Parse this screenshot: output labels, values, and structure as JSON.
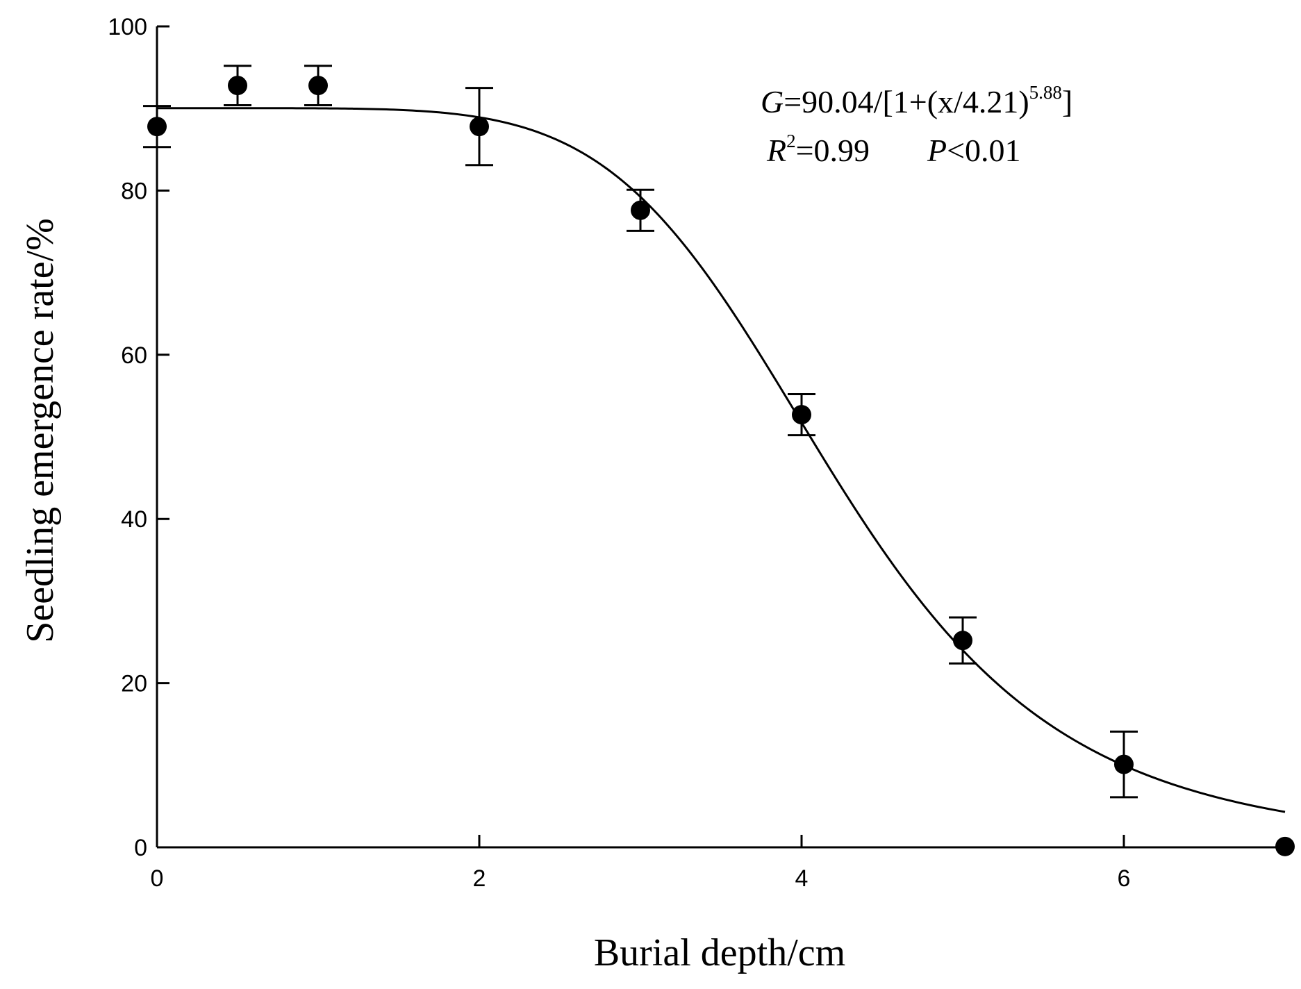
{
  "chart_data": {
    "type": "scatter",
    "title": "",
    "xlabel": "Burial depth/cm",
    "ylabel": "Seedling emergence rate/%",
    "xlim": [
      0,
      7
    ],
    "ylim": [
      0,
      100
    ],
    "x_ticks": [
      0,
      2,
      4,
      6
    ],
    "x_tick_labels": [
      "0",
      "2",
      "4",
      "6"
    ],
    "y_ticks": [
      0,
      20,
      40,
      60,
      80,
      100
    ],
    "y_tick_labels": [
      "0",
      "20",
      "40",
      "60",
      "80",
      "100"
    ],
    "grid": false,
    "points": [
      {
        "x": 0,
        "y": 87.8,
        "err": 2.5
      },
      {
        "x": 0.5,
        "y": 92.8,
        "err": 2.4
      },
      {
        "x": 1,
        "y": 92.8,
        "err": 2.4
      },
      {
        "x": 2,
        "y": 87.8,
        "err": 4.7
      },
      {
        "x": 3,
        "y": 77.6,
        "err": 2.5
      },
      {
        "x": 4,
        "y": 52.7,
        "err": 2.5
      },
      {
        "x": 5,
        "y": 25.2,
        "err": 2.8
      },
      {
        "x": 6,
        "y": 10.1,
        "err": 4.0
      },
      {
        "x": 7,
        "y": 0.1,
        "err": 0
      }
    ],
    "fit": {
      "a": 90.04,
      "x0": 4.21,
      "b": 5.88,
      "x_range": [
        0,
        7
      ]
    },
    "equation": {
      "g_var": "G",
      "g_rest": "=90.04/[1+(x/4.21)",
      "g_exp": "5.88",
      "g_close": "]",
      "r_var": "R",
      "r_exp": "2",
      "r_rest": "=0.99",
      "p_var": "P",
      "p_rest": "<0.01"
    }
  }
}
